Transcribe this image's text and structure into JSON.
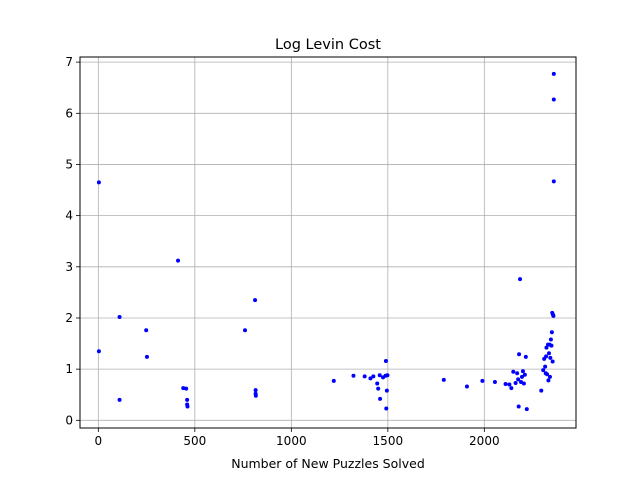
{
  "chart_data": {
    "type": "scatter",
    "title": "Log Levin Cost",
    "xlabel": "Number of New Puzzles Solved",
    "ylabel": "",
    "xlim": [
      -95,
      2475
    ],
    "ylim": [
      -0.15,
      7.1
    ],
    "xticks": [
      0,
      500,
      1000,
      1500,
      2000
    ],
    "yticks": [
      0,
      1,
      2,
      3,
      4,
      5,
      6,
      7
    ],
    "grid": true,
    "marker_color": "#0000ff",
    "series": [
      {
        "x": [
          3,
          3,
          110,
          110,
          248,
          252,
          413,
          440,
          455,
          460,
          460,
          462,
          760,
          812,
          815,
          815,
          816,
          1220,
          1322,
          1380,
          1410,
          1425,
          1445,
          1450,
          1458,
          1460,
          1475,
          1488,
          1490,
          1492,
          1495,
          1498,
          1790,
          1910,
          1990,
          2055,
          2110,
          2130,
          2140,
          2150,
          2162,
          2170,
          2175,
          2178,
          2180,
          2185,
          2190,
          2195,
          2200,
          2205,
          2210,
          2215,
          2220,
          2295,
          2305,
          2310,
          2315,
          2318,
          2320,
          2322,
          2325,
          2330,
          2332,
          2335,
          2338,
          2340,
          2342,
          2345,
          2348,
          2350,
          2352,
          2354,
          2356,
          2358,
          2360,
          2360,
          2360
        ],
        "y": [
          4.65,
          1.35,
          2.02,
          0.4,
          1.76,
          1.24,
          3.12,
          0.63,
          0.62,
          0.4,
          0.31,
          0.27,
          1.76,
          2.35,
          0.59,
          0.52,
          0.48,
          0.77,
          0.87,
          0.86,
          0.82,
          0.86,
          0.72,
          0.62,
          0.88,
          0.42,
          0.84,
          0.87,
          1.16,
          0.23,
          0.58,
          0.88,
          0.79,
          0.66,
          0.77,
          0.75,
          0.71,
          0.7,
          0.63,
          0.95,
          0.73,
          0.92,
          0.8,
          0.27,
          1.29,
          2.76,
          0.75,
          0.85,
          0.96,
          0.72,
          0.89,
          1.24,
          0.22,
          0.58,
          0.98,
          1.2,
          1.05,
          0.92,
          1.25,
          1.42,
          0.9,
          1.48,
          0.78,
          1.31,
          1.48,
          0.85,
          1.22,
          1.58,
          1.46,
          1.72,
          2.1,
          1.15,
          2.06,
          2.04,
          6.77,
          6.27,
          4.67
        ]
      }
    ]
  }
}
